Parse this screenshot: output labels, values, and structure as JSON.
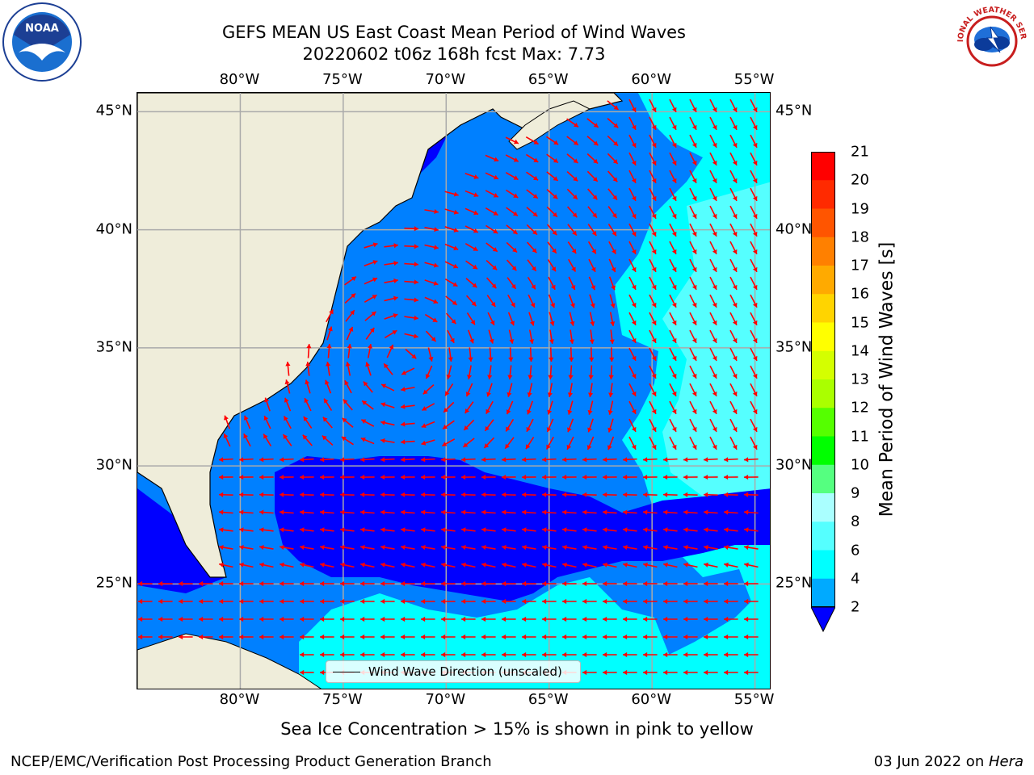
{
  "header": {
    "title_line1": "GEFS MEAN US East Coast Mean Period of Wind Waves",
    "title_line2": "20220602 t06z 168h fcst   Max: 7.73"
  },
  "logos": {
    "left_icon": "noaa-logo-icon",
    "left_text": "NOAA",
    "right_icon": "nws-logo-icon",
    "right_text": "NATIONAL WEATHER SERVICE"
  },
  "map": {
    "lon_ticks": [
      "80°W",
      "75°W",
      "70°W",
      "65°W",
      "60°W",
      "55°W"
    ],
    "lat_ticks": [
      "45°N",
      "40°N",
      "35°N",
      "30°N",
      "25°N"
    ],
    "extent": {
      "lon_min": -85,
      "lon_max": -54.2,
      "lat_min": 20.5,
      "lat_max": 45.8
    },
    "legend_label": "Wind Wave Direction (unscaled)",
    "colors": {
      "land": "#efedda",
      "grid": "#aaaaaa",
      "arrow": "#ff0000",
      "coast": "#000000"
    }
  },
  "colorbar": {
    "title": "Mean Period of Wind Waves [s]",
    "labels": [
      "21",
      "20",
      "19",
      "18",
      "17",
      "16",
      "15",
      "14",
      "13",
      "12",
      "11",
      "10",
      "9",
      "8",
      "6",
      "4",
      "2"
    ],
    "colors": [
      "#ff0000",
      "#ff2a00",
      "#ff5500",
      "#ff8000",
      "#ffaa00",
      "#ffd400",
      "#ffff00",
      "#d4ff00",
      "#aaff00",
      "#55ff00",
      "#00ff00",
      "#55ff80",
      "#aaffff",
      "#55ffff",
      "#00ffff",
      "#00aaff",
      "#0000ff"
    ]
  },
  "footer": {
    "sea_ice_note": "Sea Ice Concentration > 15% is shown in pink to yellow",
    "credit": "NCEP/EMC/Verification Post Processing Product Generation Branch",
    "date_prefix": "03 Jun 2022 on ",
    "machine": "Hera"
  }
}
